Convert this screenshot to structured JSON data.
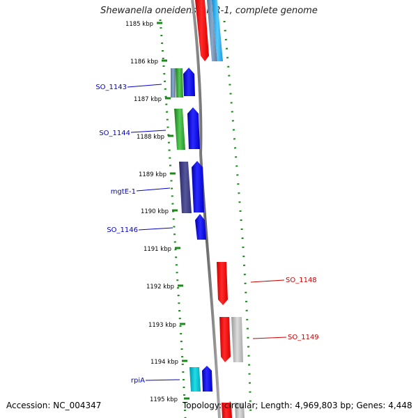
{
  "title": "Shewanella oneidensis MR-1, complete genome",
  "footer": {
    "accession": "Accession: NC_004347",
    "summary": "Topology: circular; Length: 4,969,803 bp; Genes: 4,448"
  },
  "ticks": [
    "1185 kbp",
    "1186 kbp",
    "1187 kbp",
    "1188 kbp",
    "1189 kbp",
    "1190 kbp",
    "1191 kbp",
    "1192 kbp",
    "1193 kbp",
    "1194 kbp",
    "1195 kbp"
  ],
  "gene_labels": [
    {
      "text": "SO_1143",
      "strand": "forward"
    },
    {
      "text": "SO_1144",
      "strand": "forward"
    },
    {
      "text": "mgtE-1",
      "strand": "forward"
    },
    {
      "text": "SO_1146",
      "strand": "forward"
    },
    {
      "text": "SO_1148",
      "strand": "reverse"
    },
    {
      "text": "SO_1149",
      "strand": "reverse"
    },
    {
      "text": "rpiA",
      "strand": "forward"
    }
  ],
  "colors": {
    "forward_label": "#0000cc",
    "reverse_label": "#cc0000",
    "backbone": "#888888",
    "dotted_ring": "#1a8a1a",
    "gene_blue": "#0000ff",
    "gene_red": "#ff0000",
    "gene_green": "#33aa33",
    "gene_navy": "#3a3a8a",
    "gene_cyan": "#00bbcc",
    "gene_gray": "#b0b0b0",
    "gene_skyblue": "#22aaee",
    "gene_steel": "#6688aa"
  }
}
